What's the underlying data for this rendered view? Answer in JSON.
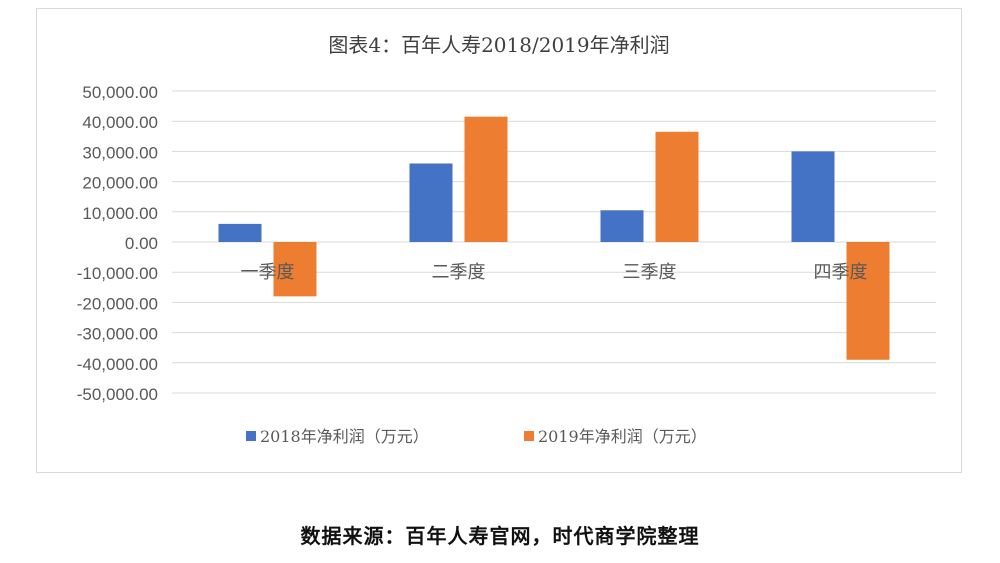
{
  "chart_data": {
    "type": "bar",
    "title": "图表4：百年人寿2018/2019年净利润",
    "categories": [
      "一季度",
      "二季度",
      "三季度",
      "四季度"
    ],
    "series": [
      {
        "name": "2018年净利润（万元）",
        "values": [
          6000,
          26000,
          10500,
          30000
        ],
        "color": "#4472C4"
      },
      {
        "name": "2019年净利润（万元）",
        "values": [
          -18000,
          41500,
          36500,
          -39000
        ],
        "color": "#ED7D31"
      }
    ],
    "ylim": [
      -50000,
      50000
    ],
    "y_ticks": [
      "50,000.00",
      "40,000.00",
      "30,000.00",
      "20,000.00",
      "10,000.00",
      "0.00",
      "-10,000.00",
      "-20,000.00",
      "-30,000.00",
      "-40,000.00",
      "-50,000.00"
    ],
    "grid": true,
    "legend_position": "bottom"
  },
  "source_note": "数据来源：百年人寿官网，时代商学院整理",
  "colors": {
    "gridline": "#d9d9d9",
    "text": "#595959",
    "title": "#404040"
  }
}
